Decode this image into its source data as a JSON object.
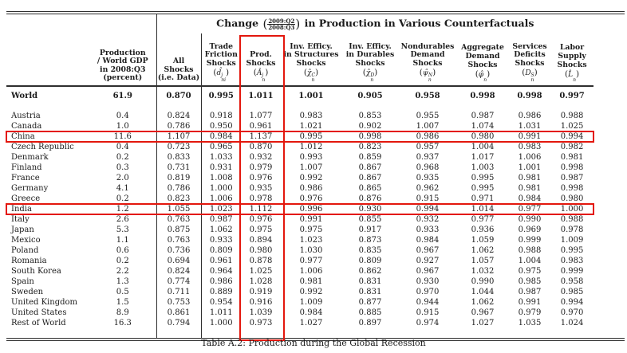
{
  "page": {
    "caption": "Table A.2: Production during the Global Recession"
  },
  "highlights": {
    "color": "#e3170d",
    "highlighted_rows": [
      "China",
      "India"
    ],
    "highlighted_column": "Prod. Shocks"
  },
  "table": {
    "title_prefix": "Change",
    "title_frac_num": "2009:Q2",
    "title_frac_den": "2008:Q3",
    "title_suffix": "in Production in Various Counterfactuals",
    "columns": [
      {
        "id": "country",
        "lines": [],
        "math": null,
        "vline": false
      },
      {
        "id": "production",
        "lines": [
          "Production",
          "/ World GDP",
          "in 2008:Q3",
          "(percent)"
        ],
        "math": null,
        "vline": true
      },
      {
        "id": "all",
        "lines": [
          "All",
          "Shocks",
          "(i.e. Data)"
        ],
        "math": null,
        "vline": true
      },
      {
        "id": "trade",
        "lines": [
          "Trade",
          "Friction",
          "Shocks"
        ],
        "math": {
          "base": "d̂",
          "sup": "j",
          "sub": "ni"
        },
        "vline": false
      },
      {
        "id": "prod",
        "lines": [
          "Prod.",
          "Shocks"
        ],
        "math": {
          "base": "Â",
          "sup": "j",
          "sub": "n"
        },
        "vline": false
      },
      {
        "id": "structures",
        "lines": [
          "Inv. Efficy.",
          "in Structures",
          "Shocks"
        ],
        "math": {
          "base": "χ̂",
          "sup": "C",
          "sub": "n"
        },
        "vline": false
      },
      {
        "id": "durables",
        "lines": [
          "Inv. Efficy.",
          "in Durables",
          "Shocks"
        ],
        "math": {
          "base": "χ̂",
          "sup": "D",
          "sub": "n"
        },
        "vline": false
      },
      {
        "id": "nondurables",
        "lines": [
          "Nondurables",
          "Demand",
          "Shocks"
        ],
        "math": {
          "base": "ψ̂",
          "sup": "N",
          "sub": "n"
        },
        "vline": false
      },
      {
        "id": "aggregate",
        "lines": [
          "Aggregate",
          "Demand",
          "Shocks"
        ],
        "math": {
          "base": "φ̂",
          "sup": "",
          "sub": "n"
        },
        "vline": false
      },
      {
        "id": "services",
        "lines": [
          "Services",
          "Deficits",
          "Shocks"
        ],
        "math": {
          "base": "D",
          "sup": "S",
          "sub": "n"
        },
        "vline": false
      },
      {
        "id": "labor",
        "lines": [
          "Labor",
          "Supply",
          "Shocks"
        ],
        "math": {
          "base": "L̂",
          "sup": "",
          "sub": "n"
        },
        "vline": false
      }
    ],
    "rows": [
      {
        "country": "World",
        "bold": true,
        "gap_after": true,
        "highlight": false,
        "values": [
          "61.9",
          "0.870",
          "0.995",
          "1.011",
          "1.001",
          "0.905",
          "0.958",
          "0.998",
          "0.998",
          "0.997"
        ]
      },
      {
        "country": "Austria",
        "bold": false,
        "highlight": false,
        "values": [
          "0.4",
          "0.824",
          "0.918",
          "1.077",
          "0.983",
          "0.853",
          "0.955",
          "0.987",
          "0.986",
          "0.988"
        ]
      },
      {
        "country": "Canada",
        "bold": false,
        "highlight": false,
        "values": [
          "1.0",
          "0.786",
          "0.950",
          "0.961",
          "1.021",
          "0.902",
          "1.007",
          "1.074",
          "1.031",
          "1.025"
        ]
      },
      {
        "country": "China",
        "bold": false,
        "highlight": true,
        "values": [
          "11.6",
          "1.107",
          "0.984",
          "1.137",
          "0.995",
          "0.998",
          "0.986",
          "0.980",
          "0.991",
          "0.994"
        ]
      },
      {
        "country": "Czech Republic",
        "bold": false,
        "highlight": false,
        "values": [
          "0.4",
          "0.723",
          "0.965",
          "0.870",
          "1.012",
          "0.823",
          "0.957",
          "1.004",
          "0.983",
          "0.982"
        ]
      },
      {
        "country": "Denmark",
        "bold": false,
        "highlight": false,
        "values": [
          "0.2",
          "0.833",
          "1.033",
          "0.932",
          "0.993",
          "0.859",
          "0.937",
          "1.017",
          "1.006",
          "0.981"
        ]
      },
      {
        "country": "Finland",
        "bold": false,
        "highlight": false,
        "values": [
          "0.3",
          "0.731",
          "0.931",
          "0.979",
          "1.007",
          "0.867",
          "0.968",
          "1.003",
          "1.001",
          "0.998"
        ]
      },
      {
        "country": "France",
        "bold": false,
        "highlight": false,
        "values": [
          "2.0",
          "0.819",
          "1.008",
          "0.976",
          "0.992",
          "0.867",
          "0.935",
          "0.995",
          "0.981",
          "0.987"
        ]
      },
      {
        "country": "Germany",
        "bold": false,
        "highlight": false,
        "values": [
          "4.1",
          "0.786",
          "1.000",
          "0.935",
          "0.986",
          "0.865",
          "0.962",
          "0.995",
          "0.981",
          "0.998"
        ]
      },
      {
        "country": "Greece",
        "bold": false,
        "highlight": false,
        "values": [
          "0.2",
          "0.823",
          "1.006",
          "0.978",
          "0.976",
          "0.876",
          "0.915",
          "0.971",
          "0.984",
          "0.980"
        ]
      },
      {
        "country": "India",
        "bold": false,
        "highlight": true,
        "values": [
          "1.2",
          "1.055",
          "1.023",
          "1.112",
          "0.996",
          "0.930",
          "0.994",
          "1.014",
          "0.977",
          "1.000"
        ]
      },
      {
        "country": "Italy",
        "bold": false,
        "highlight": false,
        "values": [
          "2.6",
          "0.763",
          "0.987",
          "0.976",
          "0.991",
          "0.855",
          "0.932",
          "0.977",
          "0.990",
          "0.988"
        ]
      },
      {
        "country": "Japan",
        "bold": false,
        "highlight": false,
        "values": [
          "5.3",
          "0.875",
          "1.062",
          "0.975",
          "0.975",
          "0.917",
          "0.933",
          "0.936",
          "0.969",
          "0.978"
        ]
      },
      {
        "country": "Mexico",
        "bold": false,
        "highlight": false,
        "values": [
          "1.1",
          "0.763",
          "0.933",
          "0.894",
          "1.023",
          "0.873",
          "0.984",
          "1.059",
          "0.999",
          "1.009"
        ]
      },
      {
        "country": "Poland",
        "bold": false,
        "highlight": false,
        "values": [
          "0.6",
          "0.736",
          "0.809",
          "0.980",
          "1.030",
          "0.835",
          "0.967",
          "1.062",
          "0.988",
          "0.995"
        ]
      },
      {
        "country": "Romania",
        "bold": false,
        "highlight": false,
        "values": [
          "0.2",
          "0.694",
          "0.961",
          "0.878",
          "0.977",
          "0.809",
          "0.927",
          "1.057",
          "1.004",
          "0.983"
        ]
      },
      {
        "country": "South Korea",
        "bold": false,
        "highlight": false,
        "values": [
          "2.2",
          "0.824",
          "0.964",
          "1.025",
          "1.006",
          "0.862",
          "0.967",
          "1.032",
          "0.975",
          "0.999"
        ]
      },
      {
        "country": "Spain",
        "bold": false,
        "highlight": false,
        "values": [
          "1.3",
          "0.774",
          "0.986",
          "1.028",
          "0.981",
          "0.831",
          "0.930",
          "0.990",
          "0.985",
          "0.958"
        ]
      },
      {
        "country": "Sweden",
        "bold": false,
        "highlight": false,
        "values": [
          "0.5",
          "0.711",
          "0.889",
          "0.919",
          "0.992",
          "0.831",
          "0.970",
          "1.044",
          "0.987",
          "0.985"
        ]
      },
      {
        "country": "United Kingdom",
        "bold": false,
        "highlight": false,
        "values": [
          "1.5",
          "0.753",
          "0.954",
          "0.916",
          "1.009",
          "0.877",
          "0.944",
          "1.062",
          "0.991",
          "0.994"
        ]
      },
      {
        "country": "United States",
        "bold": false,
        "highlight": false,
        "values": [
          "8.9",
          "0.861",
          "1.011",
          "1.039",
          "0.984",
          "0.885",
          "0.915",
          "0.967",
          "0.979",
          "0.970"
        ]
      },
      {
        "country": "Rest of World",
        "bold": false,
        "highlight": false,
        "values": [
          "16.3",
          "0.794",
          "1.000",
          "0.973",
          "1.027",
          "0.897",
          "0.974",
          "1.027",
          "1.035",
          "1.024"
        ]
      }
    ]
  }
}
